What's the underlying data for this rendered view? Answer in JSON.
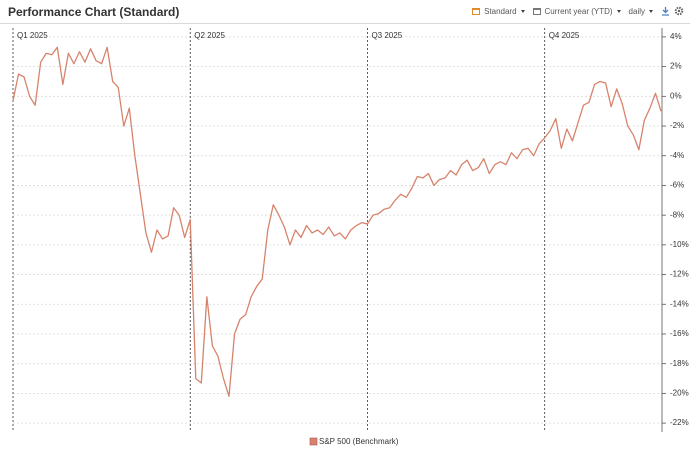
{
  "header": {
    "title": "Performance Chart (Standard)",
    "controls": [
      "Standard",
      "Current year (YTD)",
      "daily"
    ]
  },
  "chart_data": {
    "type": "line",
    "categories": [
      "Q1 2025",
      null,
      null,
      null,
      null,
      null,
      null,
      null,
      null,
      null,
      null,
      null,
      null,
      null,
      null,
      null,
      null,
      null,
      null,
      null,
      null,
      null,
      null,
      null,
      null,
      null,
      null,
      null,
      null,
      null,
      null,
      null,
      "Q2 2025",
      null,
      null,
      null,
      null,
      null,
      null,
      null,
      null,
      null,
      null,
      null,
      null,
      null,
      null,
      null,
      null,
      null,
      null,
      null,
      null,
      null,
      null,
      null,
      null,
      null,
      null,
      null,
      null,
      null,
      null,
      null,
      "Q3 2025",
      null,
      null,
      null,
      null,
      null,
      null,
      null,
      null,
      null,
      null,
      null,
      null,
      null,
      null,
      null,
      null,
      null,
      null,
      null,
      null,
      null,
      null,
      null,
      null,
      null,
      null,
      null,
      null,
      null,
      null,
      null,
      "Q4 2025",
      null,
      null,
      null,
      null,
      null,
      null,
      null,
      null,
      null,
      null,
      null,
      null,
      null,
      null,
      null,
      null,
      null,
      null,
      null,
      null,
      null
    ],
    "series": [
      {
        "name": "S&P 500 (Benchmark)",
        "color": "#d7836c",
        "values": [
          -0.3,
          1.5,
          1.3,
          0.0,
          -0.6,
          2.3,
          2.9,
          2.8,
          3.3,
          0.8,
          2.9,
          2.2,
          3.0,
          2.3,
          3.2,
          2.4,
          2.2,
          3.3,
          1.0,
          0.6,
          -2.0,
          -0.8,
          -4.0,
          -6.6,
          -9.2,
          -10.5,
          -9.0,
          -9.6,
          -9.4,
          -7.5,
          -8.0,
          -9.5,
          -8.3,
          -19.0,
          -19.3,
          -13.5,
          -16.8,
          -17.5,
          -19.0,
          -20.2,
          -16.0,
          -15.0,
          -14.7,
          -13.5,
          -12.8,
          -12.3,
          -9.0,
          -7.3,
          -8.0,
          -8.8,
          -10.0,
          -9.0,
          -9.5,
          -8.7,
          -9.2,
          -9.0,
          -9.3,
          -8.8,
          -9.4,
          -9.2,
          -9.6,
          -9.0,
          -8.7,
          -8.5,
          -8.6,
          -8.0,
          -7.9,
          -7.6,
          -7.5,
          -7.0,
          -6.6,
          -6.8,
          -6.2,
          -5.4,
          -5.5,
          -5.2,
          -6.0,
          -5.6,
          -5.5,
          -5.0,
          -5.3,
          -4.6,
          -4.3,
          -5.0,
          -4.8,
          -4.2,
          -5.2,
          -4.6,
          -4.4,
          -4.6,
          -3.8,
          -4.2,
          -3.6,
          -3.5,
          -4.0,
          -3.2,
          -2.8,
          -2.3,
          -1.5,
          -3.5,
          -2.2,
          -3.0,
          -1.8,
          -0.6,
          -0.4,
          0.8,
          1.0,
          0.9,
          -0.7,
          0.5,
          -0.5,
          -2.0,
          -2.6,
          -3.6,
          -1.6,
          -0.8,
          0.2,
          -1.0
        ]
      }
    ],
    "ylim": [
      4.6,
      -22.6
    ],
    "yticks": [
      {
        "value": 4,
        "label": "4%"
      },
      {
        "value": 2,
        "label": "2%"
      },
      {
        "value": 0,
        "label": "0%"
      },
      {
        "value": -2,
        "label": "-2%"
      },
      {
        "value": -4,
        "label": "-4%"
      },
      {
        "value": -6,
        "label": "-6%"
      },
      {
        "value": -8,
        "label": "-8%"
      },
      {
        "value": -10,
        "label": "-10%"
      },
      {
        "value": -12,
        "label": "-12%"
      },
      {
        "value": -14,
        "label": "-14%"
      },
      {
        "value": -16,
        "label": "-16%"
      },
      {
        "value": -18,
        "label": "-18%"
      },
      {
        "value": -20,
        "label": "-20%"
      },
      {
        "value": -22,
        "label": "-22%"
      }
    ],
    "grid": true,
    "legend": "bottom"
  }
}
